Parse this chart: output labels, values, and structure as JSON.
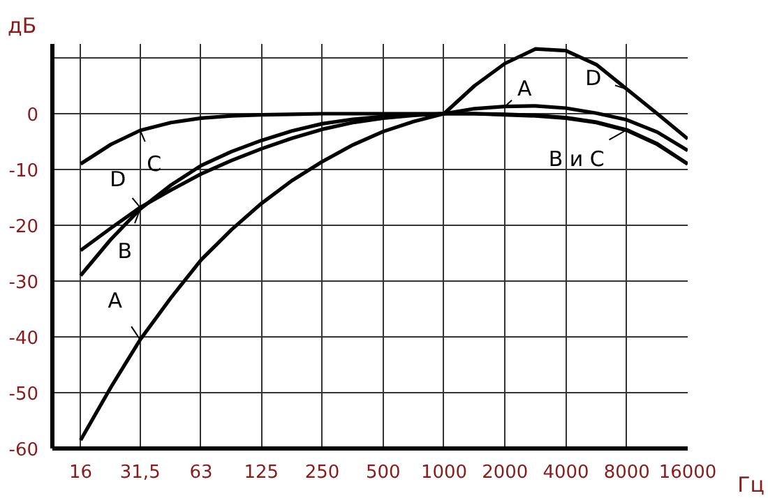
{
  "chart_data": {
    "type": "line",
    "xlabel": "Гц",
    "ylabel": "дБ",
    "x": [
      16,
      22.6,
      31.5,
      44.7,
      63,
      89,
      125,
      177,
      250,
      354,
      500,
      707,
      1000,
      1414,
      2000,
      2828,
      4000,
      5657,
      8000,
      11314,
      16000
    ],
    "series": [
      {
        "color": "#000000",
        "values": [
          -58.5,
          -49,
          -40.5,
          -33,
          -26.2,
          -20.8,
          -16.1,
          -12,
          -8.6,
          -5.6,
          -3.2,
          -1.4,
          0,
          0.9,
          1.3,
          1.4,
          1.0,
          0.1,
          -1.1,
          -3.3,
          -6.6
        ]
      },
      {
        "color": "#000000",
        "values": [
          -29,
          -22.5,
          -17.1,
          -12.8,
          -9.3,
          -6.8,
          -4.8,
          -3.1,
          -1.8,
          -1,
          -0.5,
          -0.2,
          0,
          0,
          -0.1,
          -0.3,
          -0.7,
          -1.5,
          -2.9,
          -5.4,
          -9
        ]
      },
      {
        "color": "#000000",
        "values": [
          -9,
          -5.5,
          -3.0,
          -1.6,
          -0.8,
          -0.4,
          -0.2,
          -0.1,
          0,
          0,
          0,
          0,
          0,
          0,
          -0.2,
          -0.4,
          -0.8,
          -1.6,
          -3.0,
          -5.5,
          -9
        ]
      },
      {
        "color": "#000000",
        "values": [
          -24.5,
          -20.5,
          -16.8,
          -13.7,
          -10.8,
          -8.4,
          -6.3,
          -4.4,
          -2.8,
          -1.6,
          -0.8,
          -0.3,
          0,
          5,
          9,
          11.6,
          11.3,
          8.8,
          4.4,
          0,
          -4.5
        ]
      }
    ],
    "log": "x",
    "xlim": [
      11.6,
      16000
    ],
    "xticks": [
      16,
      {
        "value": 31.5,
        "label": "31,5"
      },
      63,
      125,
      250,
      500,
      1000,
      2000,
      4000,
      8000,
      16000
    ],
    "ylim": [
      -60,
      12.5
    ],
    "yticks": [
      -60,
      -50,
      -40,
      -30,
      -20,
      -10,
      0,
      {
        "value": 10,
        "label": null
      }
    ],
    "grid": true,
    "marker": "none",
    "line_style": "solid",
    "annotations": [
      {
        "text": "A",
        "x": 2000,
        "y": 1.3
      },
      {
        "text": "D",
        "x": 8000,
        "y": 4.4
      },
      {
        "text": "C",
        "x": 31.5,
        "y": -3.0
      },
      {
        "text": "B и C",
        "x": 8000,
        "y": -2.9
      },
      {
        "text": "D",
        "x": 31.5,
        "y": -16.8
      },
      {
        "text": "B",
        "x": 31.5,
        "y": -17.1
      },
      {
        "text": "A",
        "x": 31.5,
        "y": -40.5
      }
    ]
  }
}
